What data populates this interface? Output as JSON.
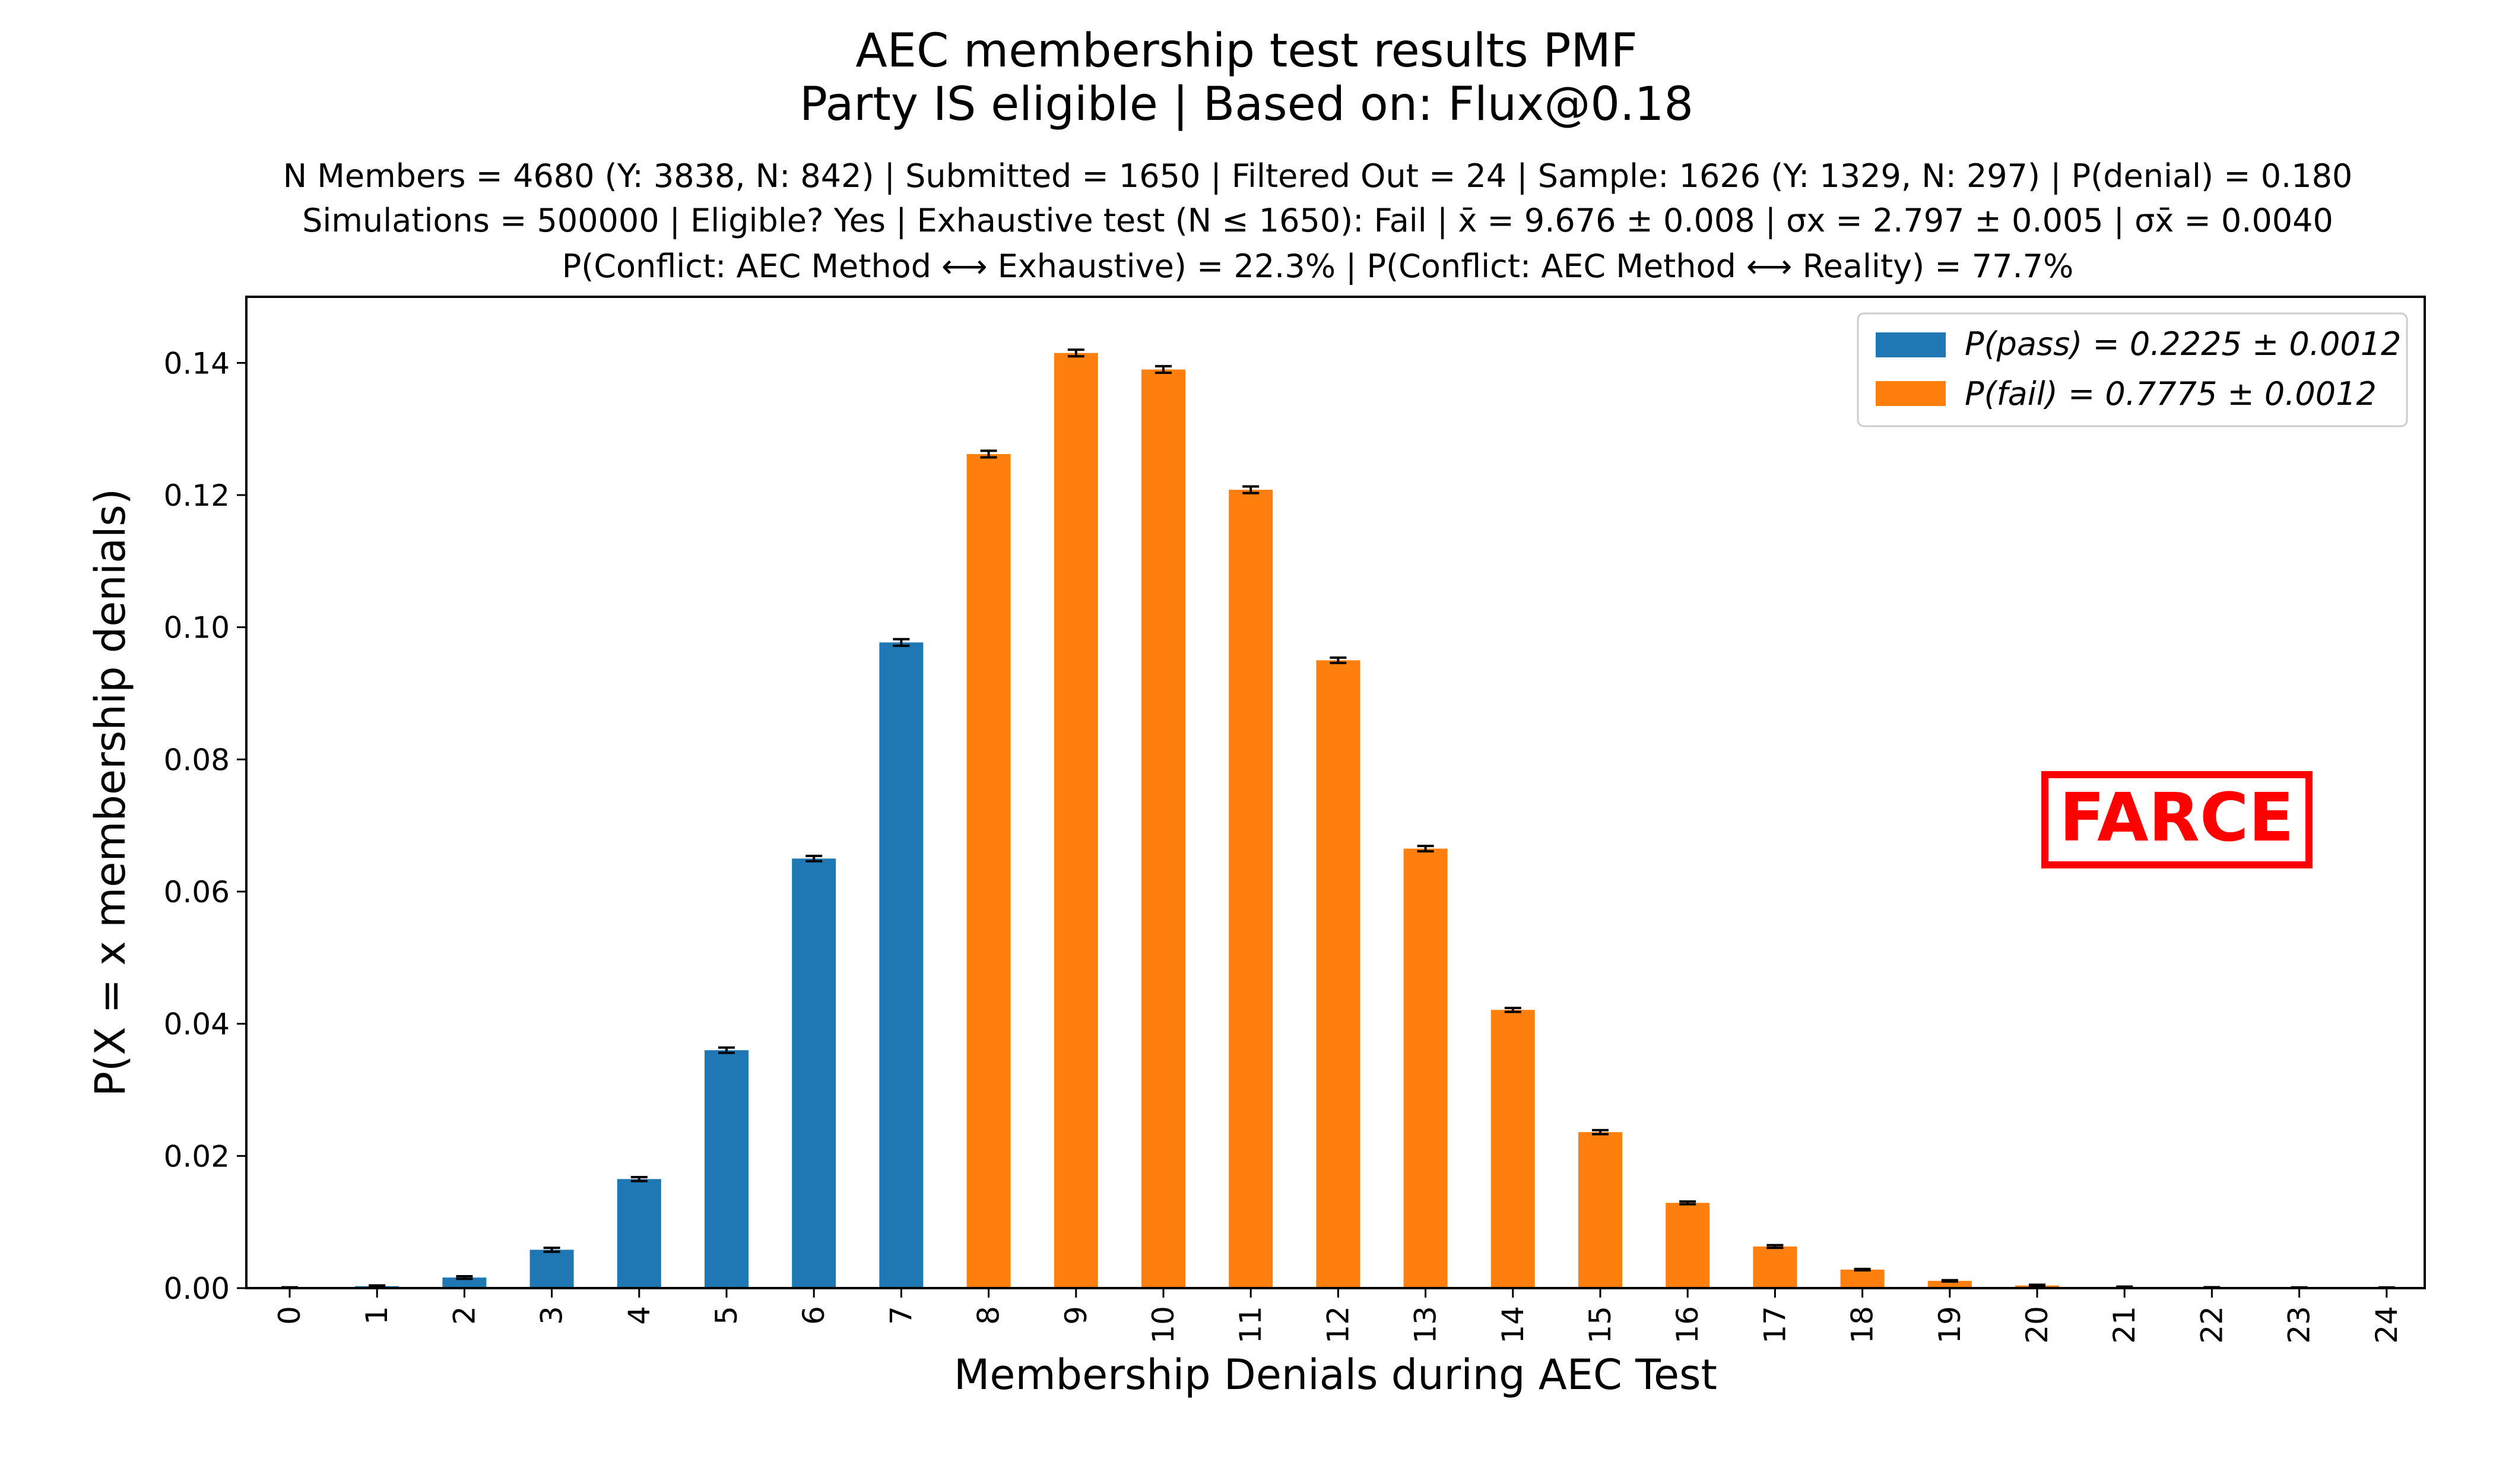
{
  "chart_data": {
    "type": "bar",
    "title": "AEC membership test results PMF",
    "title_line2": "Party IS eligible | Based on: Flux@0.18",
    "subtitle_lines": [
      "N Members = 4680 (Y: 3838, N: 842) | Submitted = 1650 | Filtered Out = 24 | Sample: 1626 (Y: 1329, N: 297) | P(denial) = 0.180",
      "Simulations = 500000 | Eligible? Yes | Exhaustive test (N ≤ 1650): Fail | x̄ = 9.676 ± 0.008 | σx = 2.797 ± 0.005 | σx̄ = 0.0040",
      "P(Conflict: AEC Method ⟷ Exhaustive) = 22.3% | P(Conflict: AEC Method ⟷ Reality) = 77.7%"
    ],
    "xlabel": "Membership Denials during AEC Test",
    "ylabel": "P(X = x membership denials)",
    "ylim": [
      0,
      0.15
    ],
    "yticks": [
      "0.00",
      "0.02",
      "0.04",
      "0.06",
      "0.08",
      "0.10",
      "0.12",
      "0.14"
    ],
    "categories": [
      "0",
      "1",
      "2",
      "3",
      "4",
      "5",
      "6",
      "7",
      "8",
      "9",
      "10",
      "11",
      "12",
      "13",
      "14",
      "15",
      "16",
      "17",
      "18",
      "19",
      "20",
      "21",
      "22",
      "23",
      "24"
    ],
    "values": [
      2e-05,
      0.0003,
      0.0016,
      0.0058,
      0.0165,
      0.036,
      0.065,
      0.0977,
      0.1262,
      0.1415,
      0.139,
      0.1208,
      0.095,
      0.0665,
      0.0421,
      0.0236,
      0.0129,
      0.0063,
      0.0028,
      0.0011,
      0.0004,
      0.00013,
      4e-05,
      1e-05,
      2e-06
    ],
    "errors": [
      0.0001,
      0.0001,
      0.0002,
      0.0003,
      0.0003,
      0.0004,
      0.0004,
      0.0005,
      0.0005,
      0.0005,
      0.0005,
      0.0005,
      0.0004,
      0.0004,
      0.0003,
      0.0003,
      0.0002,
      0.0002,
      0.0001,
      0.0001,
      0.0001,
      0.0001,
      0.0001,
      0.0001,
      0.0001
    ],
    "pass_max_x": 7,
    "legend": [
      {
        "label": "P(pass) = 0.2225 ± 0.0012",
        "color": "#1f77b4"
      },
      {
        "label": "P(fail) = 0.7775 ± 0.0012",
        "color": "#ff7f0e"
      }
    ],
    "legend_position": "top-right",
    "annotation": "FARCE",
    "annotation_color": "#ff0000",
    "grid": false
  }
}
